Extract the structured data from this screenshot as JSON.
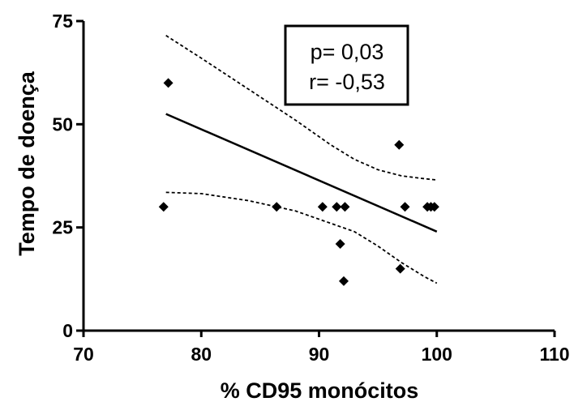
{
  "chart_data": {
    "type": "scatter",
    "title": "",
    "xlabel": "% CD95 monócitos",
    "ylabel": "Tempo de doença",
    "xlim": [
      70,
      110
    ],
    "ylim": [
      0,
      75
    ],
    "xticks": [
      70,
      80,
      90,
      100,
      110
    ],
    "yticks": [
      0,
      25,
      50,
      75
    ],
    "xtick_labels": [
      "70",
      "80",
      "90",
      "100",
      "110"
    ],
    "ytick_labels": [
      "0",
      "25",
      "50",
      "75"
    ],
    "grid": false,
    "legend": "none",
    "series": [
      {
        "kind": "points",
        "marker": "diamond",
        "x": [
          76.8,
          77.2,
          86.4,
          90.3,
          91.5,
          91.8,
          92.1,
          92.2,
          96.8,
          96.9,
          97.3,
          99.2,
          99.5,
          99.8
        ],
        "y": [
          30,
          60,
          30,
          30,
          30,
          21,
          12,
          30,
          45,
          15,
          30,
          30,
          30,
          30
        ]
      },
      {
        "kind": "regression",
        "x": [
          77,
          100
        ],
        "y": [
          52.5,
          24
        ]
      },
      {
        "kind": "ci-upper",
        "x": [
          77,
          80,
          84,
          88,
          91,
          93,
          95,
          97,
          99,
          100
        ],
        "y": [
          71.5,
          66,
          58.5,
          51,
          45,
          41.5,
          39,
          37.5,
          36.8,
          36.5
        ]
      },
      {
        "kind": "ci-lower",
        "x": [
          77,
          80,
          84,
          88,
          91,
          93,
          95,
          97,
          99,
          100
        ],
        "y": [
          33.5,
          33.2,
          31.5,
          29,
          26,
          24,
          20.5,
          16.5,
          13,
          11.5
        ]
      }
    ],
    "annotation": {
      "lines": [
        "p= 0,03",
        "r= -0,53"
      ],
      "position": "top-right"
    }
  }
}
